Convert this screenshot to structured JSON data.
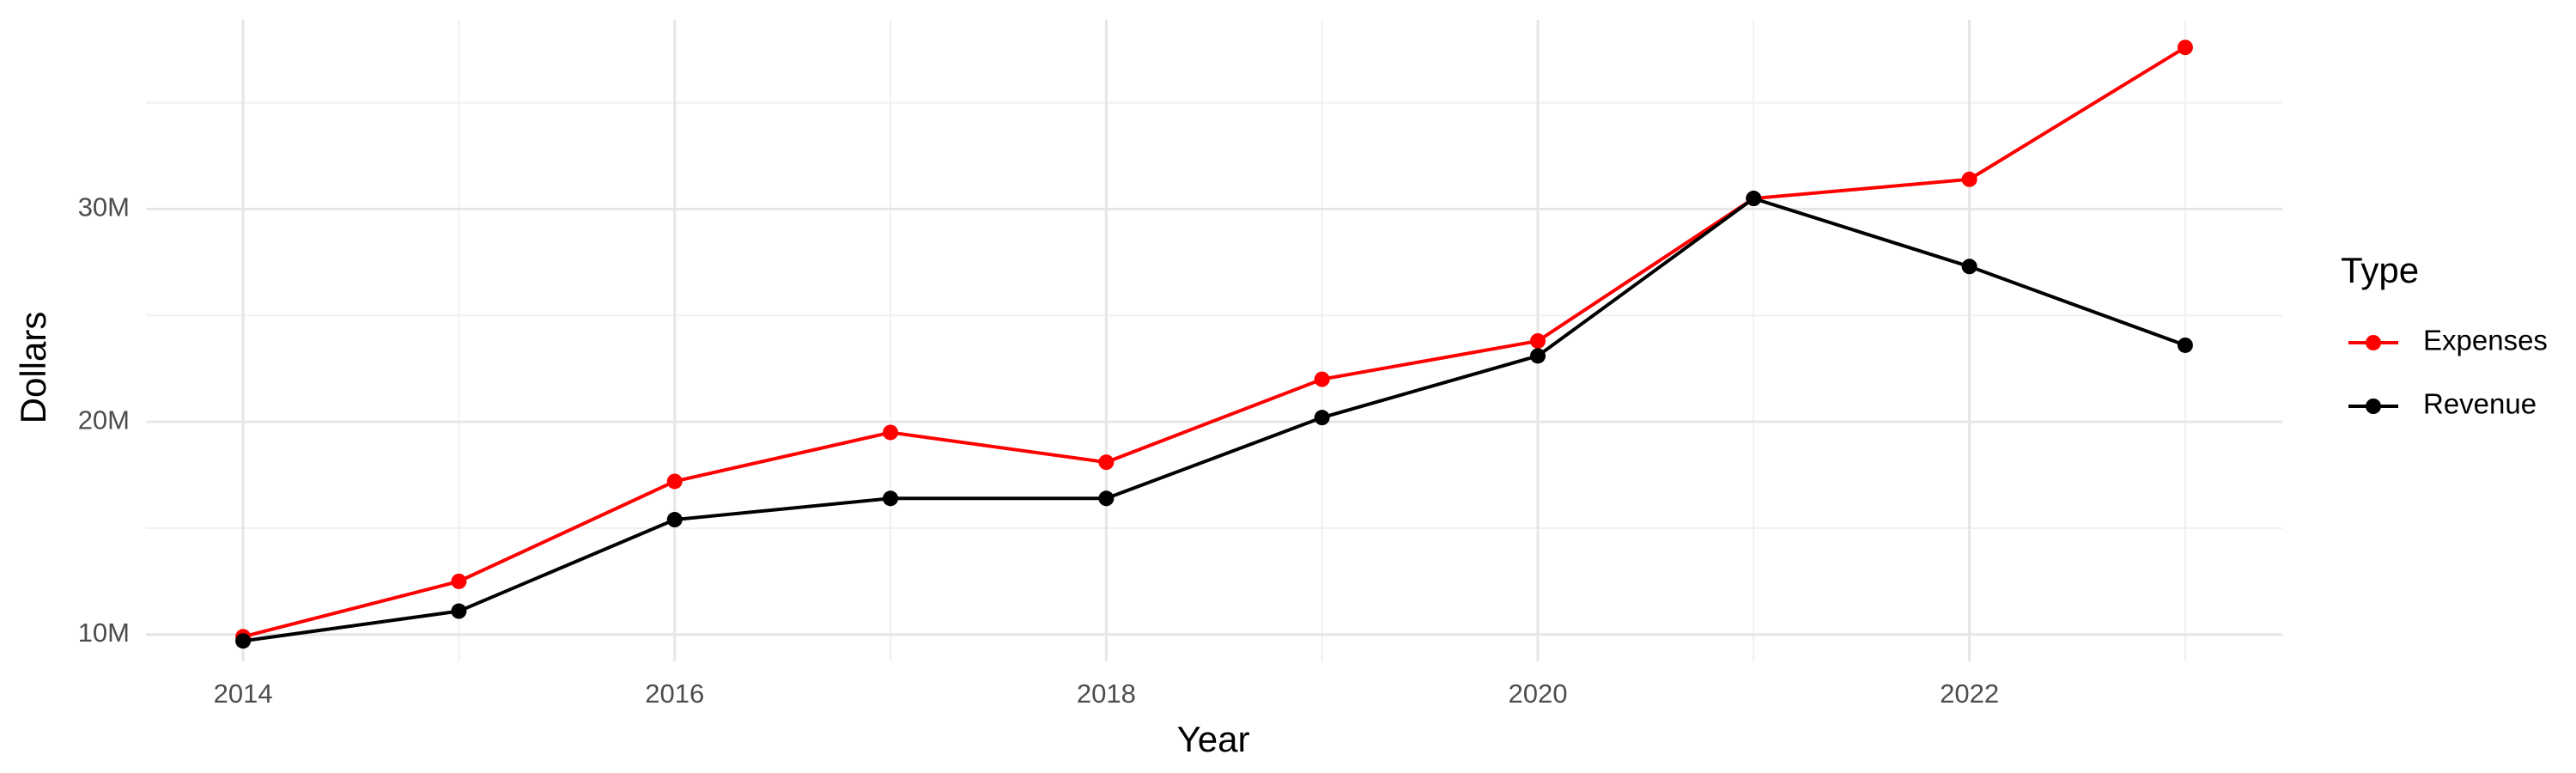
{
  "chart_data": {
    "type": "line",
    "x_label": "Year",
    "y_label": "Dollars",
    "legend_title": "Type",
    "x": [
      2014,
      2015,
      2016,
      2017,
      2018,
      2019,
      2020,
      2021,
      2022,
      2023
    ],
    "series": [
      {
        "name": "Expenses",
        "color": "#ff0000",
        "values": [
          9900000,
          12500000,
          17200000,
          19500000,
          18100000,
          22000000,
          23800000,
          30500000,
          31400000,
          37600000
        ]
      },
      {
        "name": "Revenue",
        "color": "#000000",
        "values": [
          9700000,
          11100000,
          15400000,
          16400000,
          16400000,
          20200000,
          23100000,
          30500000,
          27300000,
          23600000
        ]
      }
    ],
    "xlim": [
      2013.55,
      2023.45
    ],
    "xticks": [
      2014,
      2016,
      2018,
      2020,
      2022
    ],
    "x_minor_ticks": [
      2015,
      2017,
      2019,
      2021,
      2023
    ],
    "ylim": [
      8740000,
      38900000
    ],
    "yticks": [
      {
        "value": 10000000,
        "label": "10M"
      },
      {
        "value": 20000000,
        "label": "20M"
      },
      {
        "value": 30000000,
        "label": "30M"
      }
    ],
    "y_minor_ticks": [
      15000000,
      25000000,
      35000000
    ],
    "grid": true,
    "legend_position": "right"
  }
}
